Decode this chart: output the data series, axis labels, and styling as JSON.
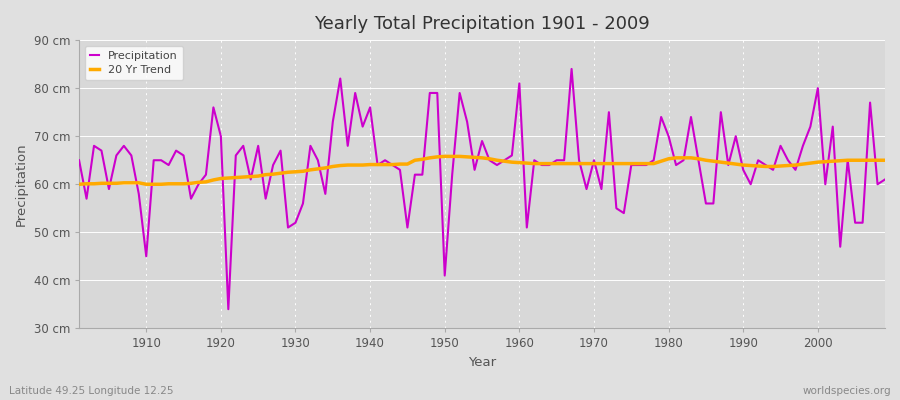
{
  "title": "Yearly Total Precipitation 1901 - 2009",
  "xlabel": "Year",
  "ylabel": "Precipitation",
  "lat_lon_label": "Latitude 49.25 Longitude 12.25",
  "watermark": "worldspecies.org",
  "ylim": [
    30,
    90
  ],
  "yticks": [
    30,
    40,
    50,
    60,
    70,
    80,
    90
  ],
  "ytick_labels": [
    "30 cm",
    "40 cm",
    "50 cm",
    "60 cm",
    "70 cm",
    "80 cm",
    "90 cm"
  ],
  "xlim": [
    1901,
    2009
  ],
  "xticks": [
    1910,
    1920,
    1930,
    1940,
    1950,
    1960,
    1970,
    1980,
    1990,
    2000
  ],
  "precip_color": "#cc00cc",
  "trend_color": "#ffaa00",
  "bg_color": "#e0e0e0",
  "plot_bg_color": "#d8d8d8",
  "grid_color": "#ffffff",
  "precip_linewidth": 1.5,
  "trend_linewidth": 2.5,
  "years": [
    1901,
    1902,
    1903,
    1904,
    1905,
    1906,
    1907,
    1908,
    1909,
    1910,
    1911,
    1912,
    1913,
    1914,
    1915,
    1916,
    1917,
    1918,
    1919,
    1920,
    1921,
    1922,
    1923,
    1924,
    1925,
    1926,
    1927,
    1928,
    1929,
    1930,
    1931,
    1932,
    1933,
    1934,
    1935,
    1936,
    1937,
    1938,
    1939,
    1940,
    1941,
    1942,
    1943,
    1944,
    1945,
    1946,
    1947,
    1948,
    1949,
    1950,
    1951,
    1952,
    1953,
    1954,
    1955,
    1956,
    1957,
    1958,
    1959,
    1960,
    1961,
    1962,
    1963,
    1964,
    1965,
    1966,
    1967,
    1968,
    1969,
    1970,
    1971,
    1972,
    1973,
    1974,
    1975,
    1976,
    1977,
    1978,
    1979,
    1980,
    1981,
    1982,
    1983,
    1984,
    1985,
    1986,
    1987,
    1988,
    1989,
    1990,
    1991,
    1992,
    1993,
    1994,
    1995,
    1996,
    1997,
    1998,
    1999,
    2000,
    2001,
    2002,
    2003,
    2004,
    2005,
    2006,
    2007,
    2008,
    2009
  ],
  "precipitation": [
    65,
    57,
    68,
    67,
    59,
    66,
    68,
    66,
    58,
    45,
    65,
    65,
    64,
    67,
    66,
    57,
    60,
    62,
    76,
    70,
    34,
    66,
    68,
    61,
    68,
    57,
    64,
    67,
    51,
    52,
    56,
    68,
    65,
    58,
    73,
    82,
    68,
    79,
    72,
    76,
    64,
    65,
    64,
    63,
    51,
    62,
    62,
    79,
    79,
    41,
    62,
    79,
    73,
    63,
    69,
    65,
    64,
    65,
    66,
    81,
    51,
    65,
    64,
    64,
    65,
    65,
    84,
    65,
    59,
    65,
    59,
    75,
    55,
    54,
    64,
    64,
    64,
    65,
    74,
    70,
    64,
    65,
    74,
    65,
    56,
    56,
    75,
    64,
    70,
    63,
    60,
    65,
    64,
    63,
    68,
    65,
    63,
    68,
    72,
    80,
    60,
    72,
    47,
    65,
    52,
    52,
    77,
    60,
    61
  ],
  "trend": [
    60.0,
    60.1,
    60.1,
    60.2,
    60.2,
    60.2,
    60.3,
    60.3,
    60.3,
    60.0,
    60.0,
    60.0,
    60.1,
    60.1,
    60.1,
    60.2,
    60.4,
    60.5,
    60.9,
    61.2,
    61.3,
    61.4,
    61.5,
    61.6,
    61.7,
    62.0,
    62.1,
    62.3,
    62.5,
    62.6,
    62.7,
    63.0,
    63.2,
    63.4,
    63.7,
    63.9,
    64.0,
    64.0,
    64.0,
    64.1,
    64.1,
    64.1,
    64.1,
    64.2,
    64.2,
    65.0,
    65.2,
    65.5,
    65.7,
    65.8,
    65.8,
    65.8,
    65.7,
    65.6,
    65.5,
    65.3,
    65.0,
    64.8,
    64.6,
    64.5,
    64.4,
    64.3,
    64.3,
    64.3,
    64.3,
    64.3,
    64.3,
    64.3,
    64.3,
    64.3,
    64.3,
    64.3,
    64.3,
    64.3,
    64.3,
    64.3,
    64.3,
    64.3,
    64.8,
    65.3,
    65.5,
    65.5,
    65.5,
    65.3,
    65.0,
    64.8,
    64.6,
    64.4,
    64.2,
    64.0,
    63.9,
    63.8,
    63.7,
    63.7,
    63.8,
    63.9,
    64.0,
    64.2,
    64.4,
    64.6,
    64.7,
    64.8,
    64.9,
    65.0,
    65.0,
    65.0,
    65.0,
    65.0,
    65.0
  ]
}
